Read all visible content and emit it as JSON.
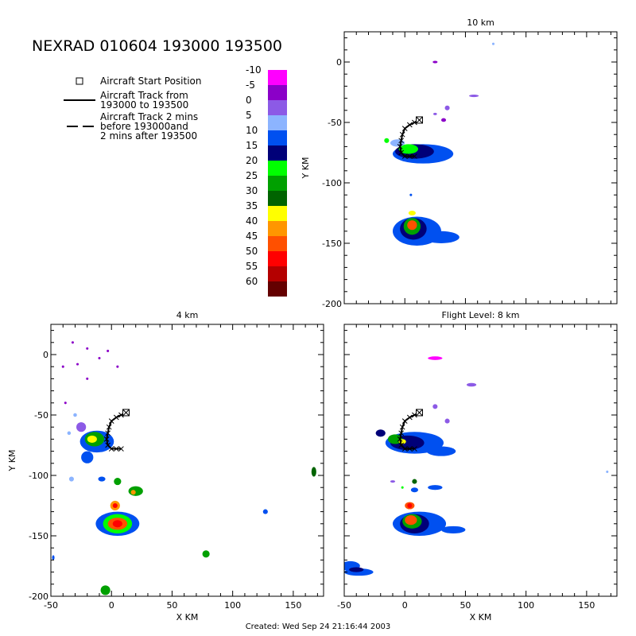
{
  "header": {
    "title": "NEXRAD 010604 193000 193500",
    "created": "Created: Wed Sep 24 21:16:44 2003"
  },
  "legend": {
    "start_label": "Aircraft Start Position",
    "track_solid_lines": [
      "Aircraft Track from",
      "193000 to 193500"
    ],
    "track_dashed_lines": [
      "Aircraft Track 2 mins",
      "before 193000and",
      "2 mins after 193500"
    ]
  },
  "colorbar": {
    "labels": [
      "-10",
      "-5",
      "0",
      "5",
      "10",
      "15",
      "20",
      "25",
      "30",
      "35",
      "40",
      "45",
      "50",
      "55",
      "60"
    ],
    "colors": [
      "#ff00ff",
      "#8b00c8",
      "#8c5ae6",
      "#8cb4ff",
      "#0050f0",
      "#000078",
      "#00ff00",
      "#00a000",
      "#006400",
      "#ffff00",
      "#ff9600",
      "#ff5000",
      "#ff0000",
      "#b40000",
      "#640000"
    ],
    "dbz_at_bottom_of_scale": 65
  },
  "chart_data": [
    {
      "type": "heatmap",
      "title": "10 km",
      "xlabel": "",
      "ylabel": "Y KM",
      "xlim": [
        -50,
        175
      ],
      "ylim": [
        -200,
        25
      ],
      "xticks": [],
      "yticks": [
        "0",
        "-50",
        "-100",
        "-150",
        "-200"
      ],
      "track": [
        [
          12,
          -48
        ],
        [
          8,
          -50
        ],
        [
          4,
          -52
        ],
        [
          0,
          -55
        ],
        [
          -2,
          -60
        ],
        [
          -3,
          -65
        ],
        [
          -4,
          -70
        ],
        [
          -3,
          -75
        ],
        [
          0,
          -78
        ],
        [
          4,
          -78
        ],
        [
          8,
          -78
        ]
      ],
      "start": [
        12,
        -48
      ],
      "echoes": [
        {
          "cx": 15,
          "cy": -76,
          "rx": 25,
          "ry": 8,
          "dbz": 10
        },
        {
          "cx": 8,
          "cy": -74,
          "rx": 16,
          "ry": 6,
          "dbz": 15
        },
        {
          "cx": 3,
          "cy": -72,
          "rx": 8,
          "ry": 4,
          "dbz": 20
        },
        {
          "cx": -6,
          "cy": -67,
          "rx": 6,
          "ry": 3,
          "dbz": 5
        },
        {
          "cx": 10,
          "cy": -140,
          "rx": 20,
          "ry": 12,
          "dbz": 10
        },
        {
          "cx": 30,
          "cy": -145,
          "rx": 15,
          "ry": 5,
          "dbz": 10
        },
        {
          "cx": 7,
          "cy": -138,
          "rx": 11,
          "ry": 9,
          "dbz": 15
        },
        {
          "cx": 6,
          "cy": -136,
          "rx": 7,
          "ry": 7,
          "dbz": 25
        },
        {
          "cx": 6,
          "cy": -135,
          "rx": 4,
          "ry": 4,
          "dbz": 45
        },
        {
          "cx": 6,
          "cy": -125,
          "rx": 3,
          "ry": 2,
          "dbz": 35
        },
        {
          "cx": 35,
          "cy": -38,
          "rx": 2,
          "ry": 2,
          "dbz": 0
        },
        {
          "cx": 32,
          "cy": -48,
          "rx": 2,
          "ry": 1.5,
          "dbz": -5
        },
        {
          "cx": 25,
          "cy": -43,
          "rx": 1.5,
          "ry": 1,
          "dbz": 0
        },
        {
          "cx": 57,
          "cy": -28,
          "rx": 4,
          "ry": 1,
          "dbz": 0
        },
        {
          "cx": 25,
          "cy": 0,
          "rx": 2,
          "ry": 1,
          "dbz": -5
        },
        {
          "cx": 73,
          "cy": 15,
          "rx": 1,
          "ry": 1,
          "dbz": 5
        },
        {
          "cx": 5,
          "cy": -110,
          "rx": 1,
          "ry": 1,
          "dbz": 10
        },
        {
          "cx": -15,
          "cy": -65,
          "rx": 2,
          "ry": 2,
          "dbz": 20
        }
      ]
    },
    {
      "type": "heatmap",
      "title": "4 km",
      "xlabel": "X KM",
      "ylabel": "Y KM",
      "xlim": [
        -50,
        175
      ],
      "ylim": [
        -200,
        25
      ],
      "xticks": [
        "-50",
        "0",
        "50",
        "100",
        "150"
      ],
      "yticks": [
        "0",
        "-50",
        "-100",
        "-150",
        "-200"
      ],
      "track": [
        [
          12,
          -48
        ],
        [
          8,
          -50
        ],
        [
          4,
          -52
        ],
        [
          0,
          -55
        ],
        [
          -2,
          -60
        ],
        [
          -3,
          -65
        ],
        [
          -4,
          -70
        ],
        [
          -3,
          -75
        ],
        [
          0,
          -78
        ],
        [
          4,
          -78
        ],
        [
          8,
          -78
        ]
      ],
      "start": [
        12,
        -48
      ],
      "echoes": [
        {
          "cx": -12,
          "cy": -72,
          "rx": 14,
          "ry": 9,
          "dbz": 10
        },
        {
          "cx": -14,
          "cy": -70,
          "rx": 8,
          "ry": 6,
          "dbz": 25
        },
        {
          "cx": -16,
          "cy": -70,
          "rx": 4,
          "ry": 3,
          "dbz": 35
        },
        {
          "cx": -25,
          "cy": -60,
          "rx": 4,
          "ry": 4,
          "dbz": 0
        },
        {
          "cx": -20,
          "cy": -85,
          "rx": 5,
          "ry": 5,
          "dbz": 10
        },
        {
          "cx": 5,
          "cy": -140,
          "rx": 18,
          "ry": 10,
          "dbz": 10
        },
        {
          "cx": 5,
          "cy": -140,
          "rx": 12,
          "ry": 8,
          "dbz": 20
        },
        {
          "cx": 5,
          "cy": -140,
          "rx": 8,
          "ry": 5,
          "dbz": 45
        },
        {
          "cx": 5,
          "cy": -140,
          "rx": 4,
          "ry": 3,
          "dbz": 50
        },
        {
          "cx": 3,
          "cy": -125,
          "rx": 4,
          "ry": 4,
          "dbz": 40
        },
        {
          "cx": 3,
          "cy": -125,
          "rx": 2,
          "ry": 2,
          "dbz": 50
        },
        {
          "cx": 20,
          "cy": -113,
          "rx": 6,
          "ry": 4,
          "dbz": 25
        },
        {
          "cx": 18,
          "cy": -114,
          "rx": 2,
          "ry": 2,
          "dbz": 40
        },
        {
          "cx": 5,
          "cy": -105,
          "rx": 3,
          "ry": 3,
          "dbz": 25
        },
        {
          "cx": -8,
          "cy": -103,
          "rx": 3,
          "ry": 2,
          "dbz": 10
        },
        {
          "cx": -33,
          "cy": -103,
          "rx": 2,
          "ry": 2,
          "dbz": 5
        },
        {
          "cx": -5,
          "cy": -195,
          "rx": 4,
          "ry": 4,
          "dbz": 25
        },
        {
          "cx": 78,
          "cy": -165,
          "rx": 3,
          "ry": 3,
          "dbz": 25
        },
        {
          "cx": 167,
          "cy": -97,
          "rx": 2,
          "ry": 4,
          "dbz": 30
        },
        {
          "cx": 127,
          "cy": -130,
          "rx": 2,
          "ry": 2,
          "dbz": 10
        },
        {
          "cx": -48,
          "cy": -168,
          "rx": 1,
          "ry": 2,
          "dbz": 10
        },
        {
          "cx": -40,
          "cy": -10,
          "rx": 1,
          "ry": 1,
          "dbz": -5
        },
        {
          "cx": -32,
          "cy": 10,
          "rx": 1,
          "ry": 1,
          "dbz": -5
        },
        {
          "cx": -28,
          "cy": -8,
          "rx": 1,
          "ry": 1,
          "dbz": -5
        },
        {
          "cx": -3,
          "cy": 3,
          "rx": 1,
          "ry": 1,
          "dbz": -5
        },
        {
          "cx": 5,
          "cy": -10,
          "rx": 1,
          "ry": 1,
          "dbz": -5
        },
        {
          "cx": -38,
          "cy": -40,
          "rx": 1,
          "ry": 1,
          "dbz": -5
        },
        {
          "cx": -20,
          "cy": -20,
          "rx": 1,
          "ry": 1,
          "dbz": -5
        },
        {
          "cx": -10,
          "cy": -3,
          "rx": 1,
          "ry": 1,
          "dbz": -5
        },
        {
          "cx": -20,
          "cy": 5,
          "rx": 1,
          "ry": 1,
          "dbz": -5
        },
        {
          "cx": -30,
          "cy": -50,
          "rx": 1.5,
          "ry": 1.5,
          "dbz": 5
        },
        {
          "cx": -35,
          "cy": -65,
          "rx": 1.5,
          "ry": 1.5,
          "dbz": 5
        }
      ]
    },
    {
      "type": "heatmap",
      "title": "Flight Level: 8 km",
      "xlabel": "X KM",
      "ylabel": "",
      "xlim": [
        -50,
        175
      ],
      "ylim": [
        -200,
        25
      ],
      "xticks": [
        "-50",
        "0",
        "50",
        "100",
        "150"
      ],
      "yticks": [],
      "track": [
        [
          12,
          -48
        ],
        [
          8,
          -50
        ],
        [
          4,
          -52
        ],
        [
          0,
          -55
        ],
        [
          -2,
          -60
        ],
        [
          -3,
          -65
        ],
        [
          -4,
          -70
        ],
        [
          -3,
          -75
        ],
        [
          0,
          -78
        ],
        [
          4,
          -78
        ],
        [
          8,
          -78
        ]
      ],
      "start": [
        12,
        -48
      ],
      "echoes": [
        {
          "cx": 8,
          "cy": -73,
          "rx": 24,
          "ry": 9,
          "dbz": 10
        },
        {
          "cx": 30,
          "cy": -80,
          "rx": 12,
          "ry": 4,
          "dbz": 10
        },
        {
          "cx": 2,
          "cy": -73,
          "rx": 14,
          "ry": 6,
          "dbz": 15
        },
        {
          "cx": -8,
          "cy": -70,
          "rx": 6,
          "ry": 4,
          "dbz": 25
        },
        {
          "cx": -2,
          "cy": -72,
          "rx": 3,
          "ry": 2,
          "dbz": 35
        },
        {
          "cx": -20,
          "cy": -65,
          "rx": 4,
          "ry": 3,
          "dbz": 15
        },
        {
          "cx": 12,
          "cy": -140,
          "rx": 22,
          "ry": 10,
          "dbz": 10
        },
        {
          "cx": 40,
          "cy": -145,
          "rx": 10,
          "ry": 3,
          "dbz": 10
        },
        {
          "cx": 8,
          "cy": -140,
          "rx": 12,
          "ry": 8,
          "dbz": 15
        },
        {
          "cx": 6,
          "cy": -138,
          "rx": 8,
          "ry": 6,
          "dbz": 25
        },
        {
          "cx": 5,
          "cy": -137,
          "rx": 5,
          "ry": 4,
          "dbz": 45
        },
        {
          "cx": 4,
          "cy": -125,
          "rx": 4,
          "ry": 3,
          "dbz": 45
        },
        {
          "cx": 4,
          "cy": -125,
          "rx": 2,
          "ry": 2,
          "dbz": 50
        },
        {
          "cx": 25,
          "cy": -110,
          "rx": 6,
          "ry": 2,
          "dbz": 10
        },
        {
          "cx": 8,
          "cy": -105,
          "rx": 2,
          "ry": 2,
          "dbz": 30
        },
        {
          "cx": 8,
          "cy": -112,
          "rx": 3,
          "ry": 2,
          "dbz": 10
        },
        {
          "cx": -45,
          "cy": -175,
          "rx": 8,
          "ry": 4,
          "dbz": 10
        },
        {
          "cx": -38,
          "cy": -180,
          "rx": 12,
          "ry": 3,
          "dbz": 10
        },
        {
          "cx": -40,
          "cy": -178,
          "rx": 6,
          "ry": 2,
          "dbz": 15
        },
        {
          "cx": 25,
          "cy": -43,
          "rx": 2,
          "ry": 2,
          "dbz": 0
        },
        {
          "cx": 35,
          "cy": -55,
          "rx": 2,
          "ry": 2,
          "dbz": 0
        },
        {
          "cx": 55,
          "cy": -25,
          "rx": 4,
          "ry": 1.5,
          "dbz": 0
        },
        {
          "cx": 25,
          "cy": -3,
          "rx": 6,
          "ry": 1.5,
          "dbz": -10
        },
        {
          "cx": -10,
          "cy": -105,
          "rx": 2,
          "ry": 1,
          "dbz": 0
        },
        {
          "cx": -2,
          "cy": -110,
          "rx": 1,
          "ry": 1,
          "dbz": 20
        },
        {
          "cx": 167,
          "cy": -97,
          "rx": 1,
          "ry": 1,
          "dbz": 5
        }
      ]
    }
  ]
}
